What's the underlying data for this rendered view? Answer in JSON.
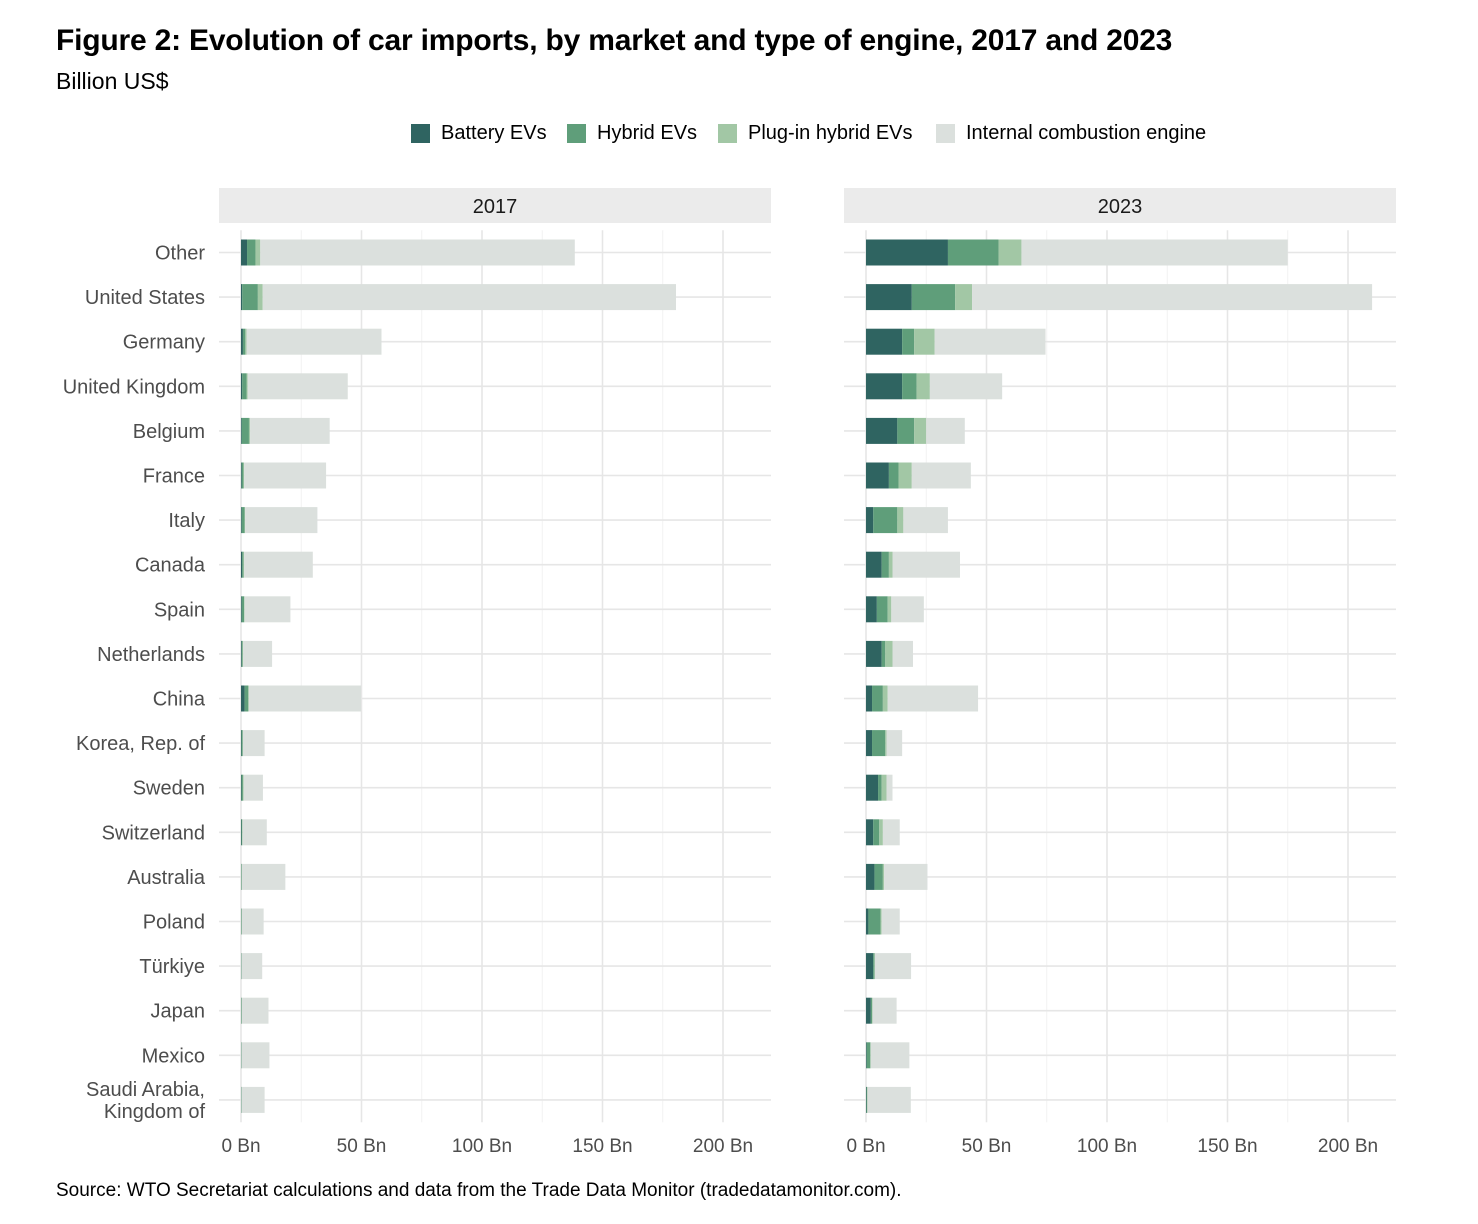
{
  "chart_data": {
    "type": "bar",
    "orientation": "horizontal",
    "stacked": true,
    "title": "Figure 2: Evolution of car imports, by market and type of engine, 2017 and 2023",
    "subtitle": "Billion US$",
    "source": "Source: WTO Secretariat calculations and data from the Trade Data Monitor (tradedatamonitor.com).",
    "legend_position": "top-center",
    "xlim": [
      0,
      220
    ],
    "x_ticks": [
      0,
      50,
      100,
      150,
      200
    ],
    "x_tick_labels": [
      "0 Bn",
      "50 Bn",
      "100 Bn",
      "150 Bn",
      "200 Bn"
    ],
    "categories": [
      "Other",
      "United States",
      "Germany",
      "United Kingdom",
      "Belgium",
      "France",
      "Italy",
      "Canada",
      "Spain",
      "Netherlands",
      "China",
      "Korea, Rep. of",
      "Sweden",
      "Switzerland",
      "Australia",
      "Poland",
      "Türkiye",
      "Japan",
      "Mexico",
      "Saudi Arabia, Kingdom of"
    ],
    "category_lines": [
      [
        "Other"
      ],
      [
        "United States"
      ],
      [
        "Germany"
      ],
      [
        "United Kingdom"
      ],
      [
        "Belgium"
      ],
      [
        "France"
      ],
      [
        "Italy"
      ],
      [
        "Canada"
      ],
      [
        "Spain"
      ],
      [
        "Netherlands"
      ],
      [
        "China"
      ],
      [
        "Korea, Rep. of"
      ],
      [
        "Sweden"
      ],
      [
        "Switzerland"
      ],
      [
        "Australia"
      ],
      [
        "Poland"
      ],
      [
        "Türkiye"
      ],
      [
        "Japan"
      ],
      [
        "Mexico"
      ],
      [
        "Saudi Arabia,",
        "Kingdom of"
      ]
    ],
    "series_names": [
      "Battery EVs",
      "Hybrid EVs",
      "Plug-in hybrid EVs",
      "Internal combustion engine"
    ],
    "series_colors": [
      "#2f6461",
      "#5f9e7a",
      "#a2c7a5",
      "#dbe0dd"
    ],
    "panels": [
      {
        "label": "2017",
        "series": [
          {
            "name": "Battery EVs",
            "values": [
              2.5,
              0.5,
              0.8,
              0.5,
              0.3,
              0.3,
              0.3,
              0.5,
              0.3,
              0.3,
              1.5,
              0.2,
              0.2,
              0.2,
              0.1,
              0.1,
              0.1,
              0.1,
              0.1,
              0.1
            ]
          },
          {
            "name": "Hybrid EVs",
            "values": [
              3.5,
              6.5,
              1.0,
              1.8,
              3.0,
              0.7,
              1.2,
              0.5,
              1.0,
              0.3,
              1.5,
              0.5,
              0.6,
              0.3,
              0.2,
              0.2,
              0.1,
              0.2,
              0.1,
              0.1
            ]
          },
          {
            "name": "Plug-in hybrid EVs",
            "values": [
              2.0,
              2.0,
              0.5,
              0.5,
              0.5,
              0.3,
              0.2,
              0.3,
              0.2,
              0.3,
              0.3,
              0.1,
              0.3,
              0.2,
              0.1,
              0.1,
              0.1,
              0.1,
              0.1,
              0.1
            ]
          },
          {
            "name": "Internal combustion engine",
            "values": [
              130.5,
              171.5,
              56.0,
              41.5,
              33.0,
              34.0,
              30.0,
              28.5,
              19.0,
              12.0,
              46.5,
              9.0,
              8.0,
              10.0,
              18.0,
              9.0,
              8.5,
              11.0,
              11.5,
              9.5
            ]
          }
        ]
      },
      {
        "label": "2023",
        "series": [
          {
            "name": "Battery EVs",
            "values": [
              34,
              19,
              15,
              15,
              13,
              9.5,
              3,
              6.5,
              4.5,
              6.5,
              2.5,
              2.5,
              5,
              3,
              3.5,
              1,
              3,
              2,
              0.3,
              0.2
            ]
          },
          {
            "name": "Hybrid EVs",
            "values": [
              21,
              18,
              5,
              6,
              7,
              4,
              10,
              3,
              4.5,
              1.5,
              4.5,
              5.5,
              1.5,
              2.5,
              3.5,
              5,
              0.5,
              0.5,
              1.5,
              0.2
            ]
          },
          {
            "name": "Plug-in hybrid EVs",
            "values": [
              9.5,
              7,
              8.5,
              5.5,
              5,
              5.5,
              2.5,
              1.5,
              1.5,
              3,
              2,
              0.5,
              2,
              1.5,
              0.5,
              0.5,
              0.2,
              0.2,
              0.2,
              0.2
            ]
          },
          {
            "name": "Internal combustion engine",
            "values": [
              110.5,
              166,
              46,
              30,
              16,
              24.5,
              18.5,
              28,
              13.5,
              8.5,
              37.5,
              6.5,
              2.5,
              7,
              18,
              7.5,
              15,
              10,
              16,
              18
            ]
          }
        ]
      }
    ]
  }
}
